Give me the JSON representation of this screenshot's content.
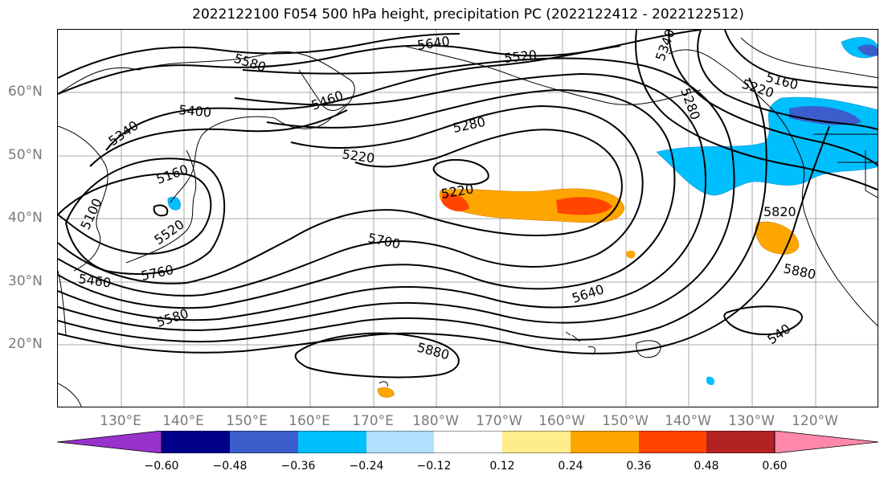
{
  "title": "2022122100 F054 500 hPa height, precipitation PC (2022122412 - 2022122512)",
  "lat_labels": [
    "60°N",
    "50°N",
    "40°N",
    "30°N",
    "20°N"
  ],
  "lon_labels": [
    "130°E",
    "140°E",
    "150°E",
    "160°E",
    "170°E",
    "180°W",
    "170°W",
    "160°W",
    "150°W",
    "140°W",
    "130°W",
    "120°W"
  ],
  "contour_labels": [
    "5640",
    "5580",
    "5520",
    "5340",
    "5280",
    "5160",
    "5220",
    "5400",
    "5460",
    "5340",
    "5280",
    "5220",
    "5160",
    "5220",
    "5100",
    "5520",
    "5460",
    "5760",
    "5580",
    "5700",
    "5640",
    "5820",
    "5880",
    "5880",
    "540"
  ],
  "colorbar": {
    "ticks": [
      "−0.60",
      "−0.48",
      "−0.36",
      "−0.24",
      "−0.12",
      "0.12",
      "0.24",
      "0.36",
      "0.48",
      "0.60"
    ],
    "colors": [
      "#9932CC",
      "#00008B",
      "#3A5ECC",
      "#00BFFF",
      "#B0E2FF",
      "#FFFFFF",
      "#FFEC8B",
      "#FFA500",
      "#FF4500",
      "#B22222",
      "#FF88AA"
    ]
  }
}
